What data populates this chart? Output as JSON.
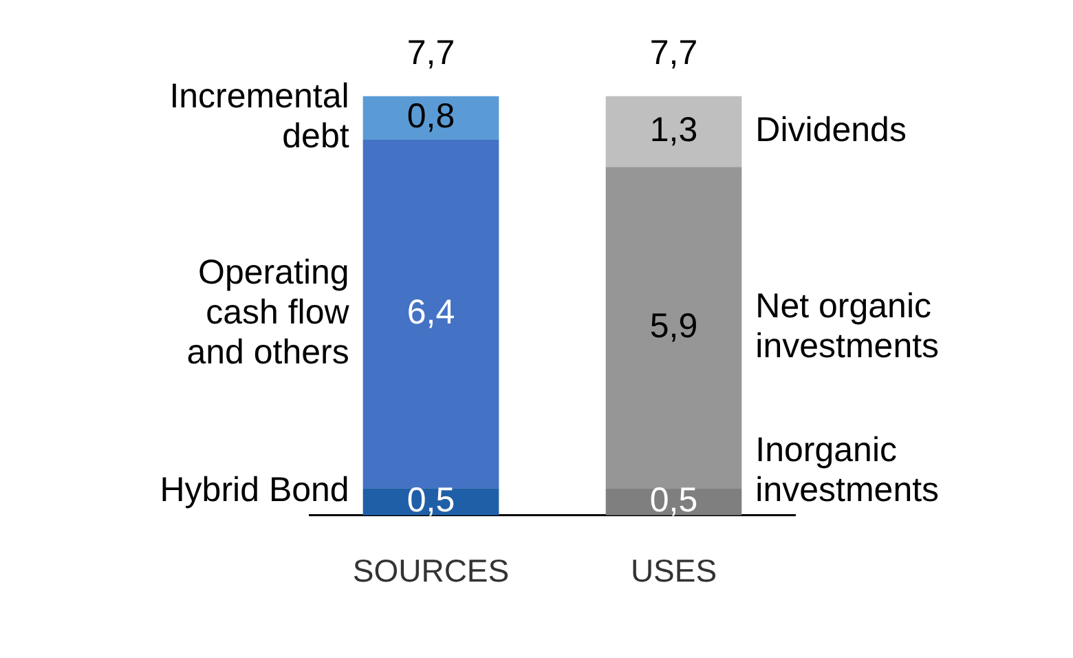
{
  "chart_data": {
    "type": "bar",
    "stacked": true,
    "categories": [
      "SOURCES",
      "USES"
    ],
    "tick_labels": "x",
    "legend": false,
    "grid": false,
    "series": [
      {
        "name": "Hybrid Bond",
        "color": "#1f5fa8",
        "values": [
          0.5,
          null
        ],
        "value_labels": [
          "0,5",
          null
        ]
      },
      {
        "name": "Operating cash flow and others",
        "color": "#4472c4",
        "values": [
          6.4,
          null
        ],
        "value_labels": [
          "6,4",
          null
        ]
      },
      {
        "name": "Incremental debt",
        "color": "#5b9bd5",
        "values": [
          0.8,
          null
        ],
        "value_labels": [
          "0,8",
          null
        ]
      },
      {
        "name": "Inorganic investments",
        "color": "#7f7f7f",
        "values": [
          null,
          0.5
        ],
        "value_labels": [
          null,
          "0,5"
        ]
      },
      {
        "name": "Net organic investments",
        "color": "#969696",
        "values": [
          null,
          5.9
        ],
        "value_labels": [
          null,
          "5,9"
        ]
      },
      {
        "name": "Dividends",
        "color": "#bfbfbf",
        "values": [
          null,
          1.3
        ],
        "value_labels": [
          null,
          "1,3"
        ]
      }
    ],
    "totals": [
      "7,7",
      "7,7"
    ]
  }
}
